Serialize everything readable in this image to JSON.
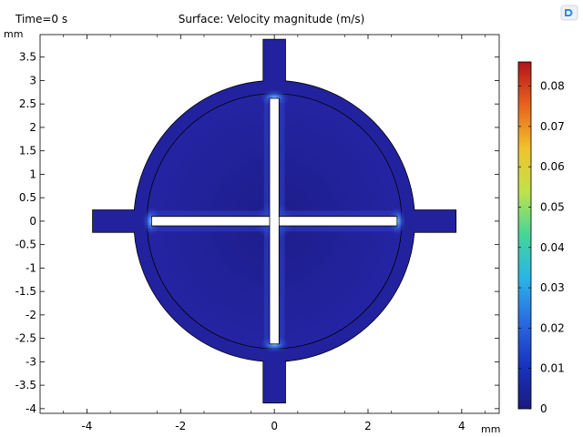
{
  "header": {
    "time_label": "Time=0 s",
    "title": "Surface: Velocity magnitude (m/s)",
    "unit_y": "mm",
    "unit_x": "mm",
    "toolbar_icon": "comsol-logo-icon"
  },
  "chart_data": {
    "type": "heatmap",
    "title": "Surface: Velocity magnitude (m/s)",
    "xlabel": "mm",
    "ylabel": "mm",
    "xlim": [
      -5,
      4.8
    ],
    "ylim": [
      -4.1,
      3.98
    ],
    "x_ticks": [
      -4,
      -2,
      0,
      2,
      4
    ],
    "x_tick_labels": [
      "-4",
      "-2",
      "0",
      "2",
      "4"
    ],
    "y_ticks": [
      3.5,
      3,
      2.5,
      2,
      1.5,
      1,
      0.5,
      0,
      -0.5,
      -1,
      -1.5,
      -2,
      -2.5,
      -3,
      -3.5,
      -4
    ],
    "y_tick_labels": [
      "3.5",
      "3",
      "2.5",
      "2",
      "1.5",
      "1",
      "0.5",
      "0",
      "-0.5",
      "-1",
      "-1.5",
      "-2",
      "-2.5",
      "-3",
      "-3.5",
      "-4"
    ],
    "grid": false,
    "geometry": {
      "outer_circle_radius": 3.0,
      "inner_circle_radius": 2.72,
      "port_half_width": 0.24,
      "port_extent": 3.88,
      "slit_half_length": 2.62,
      "slit_half_width": 0.1
    },
    "colorbar": {
      "range": [
        0,
        0.086
      ],
      "ticks": [
        0,
        0.01,
        0.02,
        0.03,
        0.04,
        0.05,
        0.06,
        0.07,
        0.08
      ],
      "tick_labels": [
        "0",
        "0.01",
        "0.02",
        "0.03",
        "0.04",
        "0.05",
        "0.06",
        "0.07",
        "0.08"
      ],
      "colors": [
        "#1a1a7e",
        "#1833c0",
        "#2a6ae0",
        "#29b4e8",
        "#43d69a",
        "#bfe24a",
        "#f1c32c",
        "#e8631c",
        "#b3141c"
      ]
    },
    "colors": {
      "field_base": "#22229f",
      "field_dark": "#1b1b86",
      "hotspot": "#5fb2ff"
    }
  }
}
